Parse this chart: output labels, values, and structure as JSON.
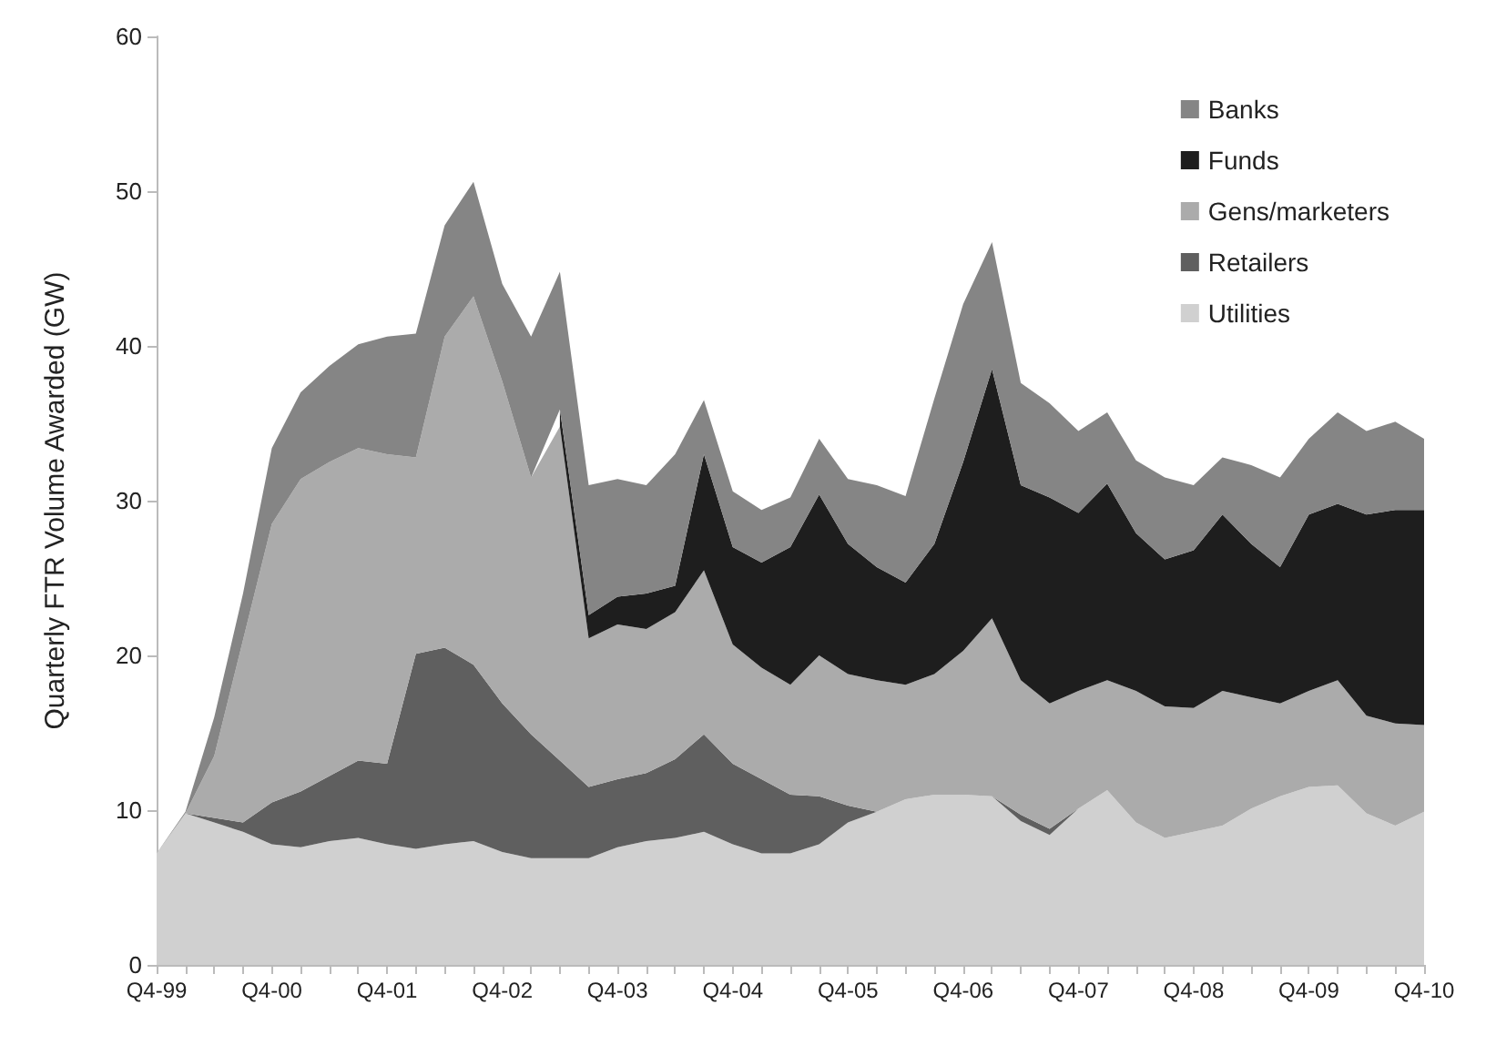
{
  "chart_data": {
    "type": "area",
    "stacked": true,
    "ylabel": "Quarterly FTR Volume Awarded (GW)",
    "categories": [
      "Q4-99",
      null,
      null,
      null,
      "Q4-00",
      null,
      null,
      null,
      "Q4-01",
      null,
      null,
      null,
      "Q4-02",
      null,
      null,
      null,
      "Q4-03",
      null,
      null,
      null,
      "Q4-04",
      null,
      null,
      null,
      "Q4-05",
      null,
      null,
      null,
      "Q4-06",
      null,
      null,
      null,
      "Q4-07",
      null,
      null,
      null,
      "Q4-08",
      null,
      null,
      null,
      "Q4-09",
      null,
      null,
      null,
      "Q4-10"
    ],
    "series": [
      {
        "name": "Utilities",
        "color": "#d0d0d0",
        "values": [
          7.2,
          9.8,
          9.2,
          8.6,
          7.8,
          7.6,
          8.0,
          8.2,
          7.8,
          7.5,
          7.8,
          8.0,
          7.3,
          6.9,
          6.9,
          6.9,
          7.6,
          8.0,
          8.2,
          8.6,
          7.8,
          7.2,
          7.2,
          7.8,
          9.2,
          9.9,
          10.7,
          11.0,
          11.0,
          10.9,
          9.3,
          8.4,
          10.1,
          11.3,
          9.2,
          8.2,
          8.6,
          9.0,
          10.1,
          10.9,
          11.5,
          11.6,
          9.8,
          9.0,
          9.9
        ]
      },
      {
        "name": "Retailers",
        "color": "#5f5f5f",
        "values": [
          0,
          0,
          0.3,
          0.6,
          2.7,
          3.6,
          4.2,
          5.0,
          5.2,
          12.6,
          12.7,
          11.4,
          9.6,
          8.0,
          6.3,
          4.6,
          4.4,
          4.4,
          5.1,
          6.3,
          5.2,
          4.8,
          3.8,
          3.1,
          1.1,
          0,
          0,
          0,
          0,
          0,
          0.4,
          0.4,
          0,
          0,
          0,
          0,
          0,
          0,
          0,
          0,
          0,
          0,
          0,
          0,
          0
        ]
      },
      {
        "name": "Gens/marketers",
        "color": "#ababab",
        "values": [
          0,
          0,
          4.0,
          11.8,
          18.0,
          20.2,
          20.3,
          20.2,
          20.0,
          12.7,
          20.1,
          23.8,
          20.8,
          16.6,
          21.6,
          9.6,
          10.0,
          9.3,
          9.5,
          10.6,
          7.7,
          7.2,
          7.1,
          9.1,
          8.5,
          8.5,
          7.4,
          7.8,
          9.3,
          11.5,
          8.7,
          8.1,
          7.6,
          7.1,
          8.5,
          8.5,
          8.0,
          8.7,
          7.2,
          6.0,
          6.2,
          6.8,
          6.3,
          6.6,
          5.6
        ]
      },
      {
        "name": "Funds",
        "color": "#1e1e1e",
        "values": [
          null,
          null,
          null,
          null,
          null,
          null,
          null,
          null,
          null,
          null,
          null,
          null,
          null,
          null,
          1.1,
          1.5,
          1.8,
          2.3,
          1.7,
          7.5,
          6.3,
          6.8,
          8.9,
          10.4,
          8.4,
          7.3,
          6.6,
          8.4,
          12.2,
          16.1,
          12.6,
          13.3,
          11.5,
          12.7,
          10.2,
          9.5,
          10.2,
          11.4,
          9.9,
          8.8,
          11.4,
          11.4,
          13.0,
          13.8,
          13.9
        ]
      },
      {
        "name": "Banks",
        "color": "#858585",
        "values": [
          0,
          0.1,
          2.5,
          3.0,
          4.9,
          5.6,
          6.2,
          6.7,
          7.6,
          8.0,
          7.2,
          7.4,
          6.3,
          9.1,
          8.9,
          8.4,
          7.6,
          7.0,
          8.5,
          3.5,
          3.6,
          3.4,
          3.2,
          3.6,
          4.2,
          5.3,
          5.6,
          9.4,
          10.2,
          8.2,
          6.6,
          6.1,
          5.3,
          4.6,
          4.7,
          5.3,
          4.2,
          3.7,
          5.1,
          5.8,
          4.9,
          5.9,
          5.4,
          5.7,
          4.6
        ]
      }
    ],
    "ylim": [
      0,
      60
    ],
    "yticks": [
      0,
      10,
      20,
      30,
      40,
      50,
      60
    ],
    "grid": false,
    "legend": "top right"
  }
}
